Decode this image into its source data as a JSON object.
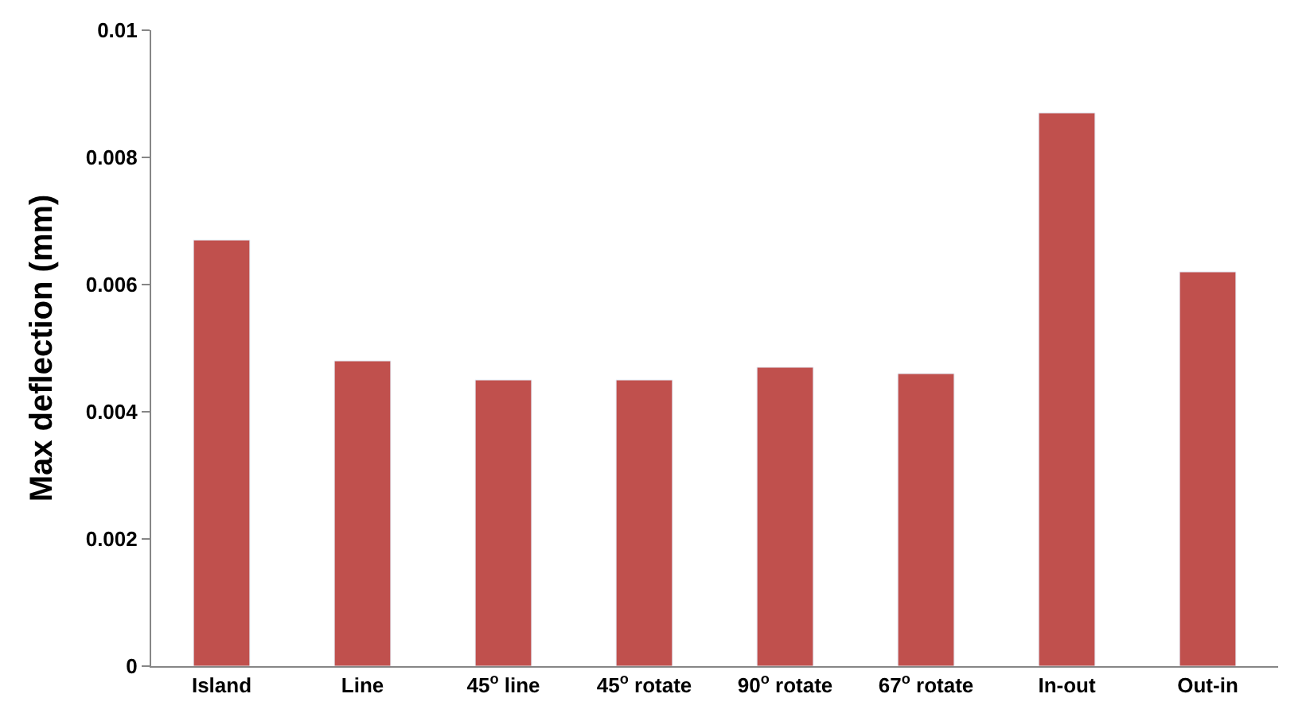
{
  "chart_data": {
    "type": "bar",
    "ylabel": "Max deflection (mm)",
    "categories": [
      "Island",
      "Line",
      "45$^{o}$ line",
      "45$^{o}$ rotate",
      "90$^{o}$ rotate",
      "67$^{o}$ rotate",
      "In-out",
      "Out-in"
    ],
    "values": [
      0.0067,
      0.0048,
      0.0045,
      0.0045,
      0.0047,
      0.0046,
      0.0087,
      0.0062
    ],
    "color": "#c0504d",
    "ylim": [
      0,
      0.01
    ],
    "yticks": [
      0,
      0.002,
      0.004,
      0.006,
      0.008,
      0.01
    ],
    "legend": false
  }
}
